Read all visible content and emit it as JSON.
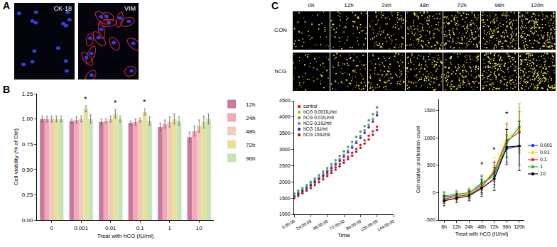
{
  "panel_labels": [
    "A",
    "B",
    "C"
  ],
  "images_A": {
    "labels": [
      "CK-18",
      "VIM"
    ]
  },
  "images_C": {
    "columns": [
      "0h",
      "12h",
      "24h",
      "48h",
      "72h",
      "96h",
      "120h"
    ],
    "rows": [
      "CON",
      "hCG"
    ]
  },
  "chart_data": [
    {
      "type": "bar",
      "x_label": "Treat with hCG (IU/ml)",
      "y_label": "Cell viability (% of Ctrl)",
      "categories": [
        "0",
        "0.001",
        "0.01",
        "0.1",
        "1",
        "10"
      ],
      "series": [
        {
          "name": "12h",
          "color": "#c9799b",
          "values": [
            1.0,
            0.98,
            0.97,
            0.96,
            0.92,
            0.82
          ],
          "error": [
            0.03,
            0.02,
            0.03,
            0.02,
            0.04,
            0.05
          ]
        },
        {
          "name": "24h",
          "color": "#f3a7b9",
          "values": [
            1.0,
            0.99,
            0.98,
            0.97,
            0.95,
            0.88
          ],
          "error": [
            0.03,
            0.03,
            0.02,
            0.03,
            0.04,
            0.05
          ]
        },
        {
          "name": "48h",
          "color": "#efcdbd",
          "values": [
            1.0,
            1.0,
            1.0,
            0.99,
            0.97,
            0.93
          ],
          "error": [
            0.03,
            0.03,
            0.03,
            0.02,
            0.05,
            0.06
          ]
        },
        {
          "name": "72h",
          "color": "#e6e29a",
          "values": [
            1.0,
            1.1,
            1.05,
            1.07,
            1.0,
            0.97
          ],
          "error": [
            0.03,
            0.03,
            0.04,
            0.03,
            0.05,
            0.06
          ]
        },
        {
          "name": "96h",
          "color": "#c6e3b5",
          "values": [
            1.0,
            1.0,
            1.0,
            0.98,
            0.98,
            1.0
          ],
          "error": [
            0.03,
            0.04,
            0.03,
            0.04,
            0.04,
            0.05
          ]
        }
      ],
      "ylim": [
        0,
        1.25
      ],
      "yticks": [
        {
          "value": 0,
          "label": "0.00"
        },
        {
          "value": 0.25,
          "label": "0.25"
        },
        {
          "value": 0.5,
          "label": "0.50"
        },
        {
          "value": 0.75,
          "label": "0.75"
        },
        {
          "value": 1,
          "label": "1.00"
        },
        {
          "value": 1.25,
          "label": "1.25"
        }
      ],
      "grid": false,
      "legend": "right",
      "annotations": [
        {
          "category": "0.001",
          "series": "72h",
          "y": 1.14,
          "text": "*"
        },
        {
          "category": "0.01",
          "series": "72h",
          "y": 1.1,
          "text": "*"
        },
        {
          "category": "0.1",
          "series": "72h",
          "y": 1.11,
          "text": "*"
        }
      ]
    },
    {
      "type": "scatter",
      "x_label": "Time",
      "x": [
        0,
        6,
        12,
        18,
        24,
        30,
        36,
        42,
        48,
        54,
        60,
        66,
        72,
        78,
        84,
        90,
        96,
        102,
        108,
        114,
        120
      ],
      "xlim": [
        0,
        144
      ],
      "xticks": [
        {
          "value": 0,
          "label": "0:00:00"
        },
        {
          "value": 24,
          "label": "24:00:00"
        },
        {
          "value": 48,
          "label": "48:00:00"
        },
        {
          "value": 72,
          "label": "72:00:00"
        },
        {
          "value": 96,
          "label": "96:00:00"
        },
        {
          "value": 120,
          "label": "120:00:00"
        },
        {
          "value": 144,
          "label": "144:00:00"
        }
      ],
      "ylim": [
        1000,
        4500
      ],
      "yticks": [
        1000,
        1500,
        2000,
        2500,
        3000,
        3500,
        4000,
        4500
      ],
      "grid": false,
      "legend": "upper left",
      "marker": "circle",
      "series": [
        {
          "name": "control",
          "color": "#e41a1c",
          "values": [
            1550,
            1620,
            1700,
            1790,
            1880,
            1980,
            2070,
            2160,
            2260,
            2350,
            2450,
            2560,
            2670,
            2780,
            2900,
            3020,
            3140,
            3280,
            3420,
            3560,
            3700
          ]
        },
        {
          "name": "hCG 0.001IU/ml",
          "color": "#a8c400",
          "values": [
            1600,
            1680,
            1760,
            1850,
            1950,
            2050,
            2150,
            2250,
            2360,
            2470,
            2580,
            2700,
            2830,
            2960,
            3100,
            3250,
            3400,
            3570,
            3740,
            3920,
            4100
          ]
        },
        {
          "name": "hCG 0.01IU/ml",
          "color": "#3daa3a",
          "values": [
            1650,
            1730,
            1810,
            1900,
            2000,
            2100,
            2210,
            2320,
            2430,
            2550,
            2670,
            2800,
            2940,
            3080,
            3230,
            3390,
            3550,
            3720,
            3900,
            4090,
            4300
          ]
        },
        {
          "name": "hCG 0.1IU/ml",
          "color": "#9b7fd1",
          "values": [
            1580,
            1660,
            1740,
            1830,
            1930,
            2030,
            2130,
            2240,
            2350,
            2460,
            2580,
            2700,
            2830,
            2970,
            3110,
            3260,
            3420,
            3590,
            3760,
            3940,
            4150
          ]
        },
        {
          "name": "hCG 1IU/ml",
          "color": "#1f3fb4",
          "values": [
            1560,
            1640,
            1720,
            1810,
            1900,
            2000,
            2100,
            2200,
            2310,
            2420,
            2530,
            2650,
            2780,
            2910,
            3050,
            3200,
            3350,
            3510,
            3680,
            3860,
            4050
          ]
        },
        {
          "name": "hCG 10IU/ml",
          "color": "#b2182b",
          "values": [
            1500,
            1570,
            1650,
            1730,
            1810,
            1900,
            1990,
            2080,
            2180,
            2280,
            2380,
            2480,
            2590,
            2700,
            2810,
            2930,
            3050,
            3180,
            3310,
            3450,
            3600
          ]
        }
      ]
    },
    {
      "type": "line",
      "x_label": "Treat with hCG (IU/ml)",
      "y_label": "Cell relative proliferation count",
      "categories": [
        "6h",
        "12h",
        "24h",
        "48h",
        "72h",
        "96h",
        "120h"
      ],
      "ylim": [
        -500,
        1700
      ],
      "yticks": [
        -500,
        0,
        500,
        1000,
        1500
      ],
      "grid": false,
      "legend": "right",
      "marker": "circle",
      "series": [
        {
          "name": "0.001",
          "color": "#1e3cff",
          "values": [
            -80,
            -50,
            -30,
            150,
            350,
            800,
            850
          ],
          "error": [
            80,
            70,
            80,
            150,
            200,
            250,
            350
          ]
        },
        {
          "name": "0.01",
          "color": "#f2dc00",
          "values": [
            -100,
            -60,
            -20,
            120,
            420,
            1000,
            1150
          ],
          "error": [
            90,
            80,
            90,
            140,
            220,
            280,
            400
          ]
        },
        {
          "name": "0.1",
          "color": "#e8261c",
          "values": [
            -120,
            -70,
            -40,
            100,
            380,
            950,
            1100
          ],
          "error": [
            70,
            60,
            70,
            130,
            180,
            300,
            380
          ]
        },
        {
          "name": "1",
          "color": "#2db82d",
          "values": [
            -60,
            -30,
            0,
            180,
            300,
            900,
            1200
          ],
          "error": [
            80,
            70,
            80,
            140,
            200,
            260,
            420
          ]
        },
        {
          "name": "10",
          "color": "#000000",
          "values": [
            -150,
            -100,
            -60,
            80,
            250,
            830,
            850
          ],
          "error": [
            90,
            80,
            90,
            150,
            210,
            320,
            450
          ]
        }
      ],
      "annotations": [
        {
          "category": "48h",
          "y": 400,
          "text": "*"
        },
        {
          "category": "72h",
          "y": 680,
          "text": "*"
        },
        {
          "category": "96h",
          "y": 1330,
          "text": "*"
        }
      ]
    }
  ]
}
